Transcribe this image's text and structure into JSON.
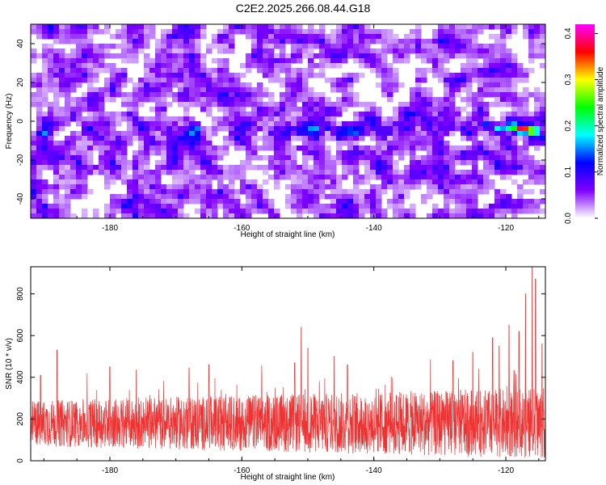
{
  "title": "C2E2.2025.266.08.44.G18",
  "chart_data": [
    {
      "type": "heatmap",
      "xlabel": "Height of straight line (km)",
      "ylabel": "Frequency (Hz)",
      "xlim": [
        -192,
        -114
      ],
      "ylim": [
        -50,
        50
      ],
      "xticks": [
        -180,
        -160,
        -140,
        -120
      ],
      "yticks": [
        -40,
        -20,
        0,
        20,
        40
      ],
      "colorbar": {
        "label": "Normalized spectral amplitude",
        "range": [
          0.0,
          0.42
        ],
        "ticks": [
          0.0,
          0.1,
          0.2,
          0.3,
          0.4
        ],
        "tick_labels": [
          "0.0",
          "0.1",
          "0.2",
          "0.3",
          "0.4"
        ],
        "colors": [
          "#ffffff",
          "#8000ff",
          "#0000ff",
          "#00ffff",
          "#00ff00",
          "#ffff00",
          "#ff0000",
          "#ff00ff"
        ]
      },
      "background_level": 0.06,
      "hotspots": [
        {
          "x": -190,
          "y": -6,
          "value": 0.16
        },
        {
          "x": -171,
          "y": -5,
          "value": 0.1
        },
        {
          "x": -160,
          "y": -5,
          "value": 0.12
        },
        {
          "x": -151,
          "y": -5,
          "value": 0.14
        },
        {
          "x": -147,
          "y": -3,
          "value": 0.12
        },
        {
          "x": -143,
          "y": -3,
          "value": 0.12
        },
        {
          "x": -140,
          "y": 0,
          "value": 0.14
        },
        {
          "x": -138,
          "y": -5,
          "value": 0.12
        },
        {
          "x": -134,
          "y": 4,
          "value": 0.12
        },
        {
          "x": -123,
          "y": -2,
          "value": 0.14
        },
        {
          "x": -121,
          "y": -4,
          "value": 0.2
        },
        {
          "x": -119,
          "y": -3,
          "value": 0.28
        },
        {
          "x": -117.5,
          "y": -4,
          "value": 0.42
        },
        {
          "x": -116,
          "y": -5,
          "value": 0.34
        }
      ]
    },
    {
      "type": "line",
      "xlabel": "Height of straight line (km)",
      "ylabel": "SNR (10 * v/v)",
      "xlim": [
        -192,
        -114
      ],
      "ylim": [
        0,
        930
      ],
      "xticks": [
        -180,
        -160,
        -140,
        -120
      ],
      "yticks": [
        0,
        200,
        400,
        600,
        800
      ],
      "color": "#f03232",
      "baseline": 180,
      "typical_range": [
        30,
        350
      ],
      "peaks": [
        {
          "x": -190.5,
          "y": 410
        },
        {
          "x": -188,
          "y": 530
        },
        {
          "x": -180,
          "y": 450
        },
        {
          "x": -176,
          "y": 435
        },
        {
          "x": -168,
          "y": 445
        },
        {
          "x": -165,
          "y": 460
        },
        {
          "x": -152,
          "y": 470
        },
        {
          "x": -151,
          "y": 640
        },
        {
          "x": -150,
          "y": 540
        },
        {
          "x": -146,
          "y": 500
        },
        {
          "x": -144,
          "y": 460
        },
        {
          "x": -128,
          "y": 480
        },
        {
          "x": -125,
          "y": 520
        },
        {
          "x": -122,
          "y": 590
        },
        {
          "x": -121,
          "y": 550
        },
        {
          "x": -119.5,
          "y": 650
        },
        {
          "x": -118,
          "y": 620
        },
        {
          "x": -117,
          "y": 800
        },
        {
          "x": -116,
          "y": 930
        },
        {
          "x": -115.5,
          "y": 870
        },
        {
          "x": -114.5,
          "y": 560
        }
      ]
    }
  ]
}
